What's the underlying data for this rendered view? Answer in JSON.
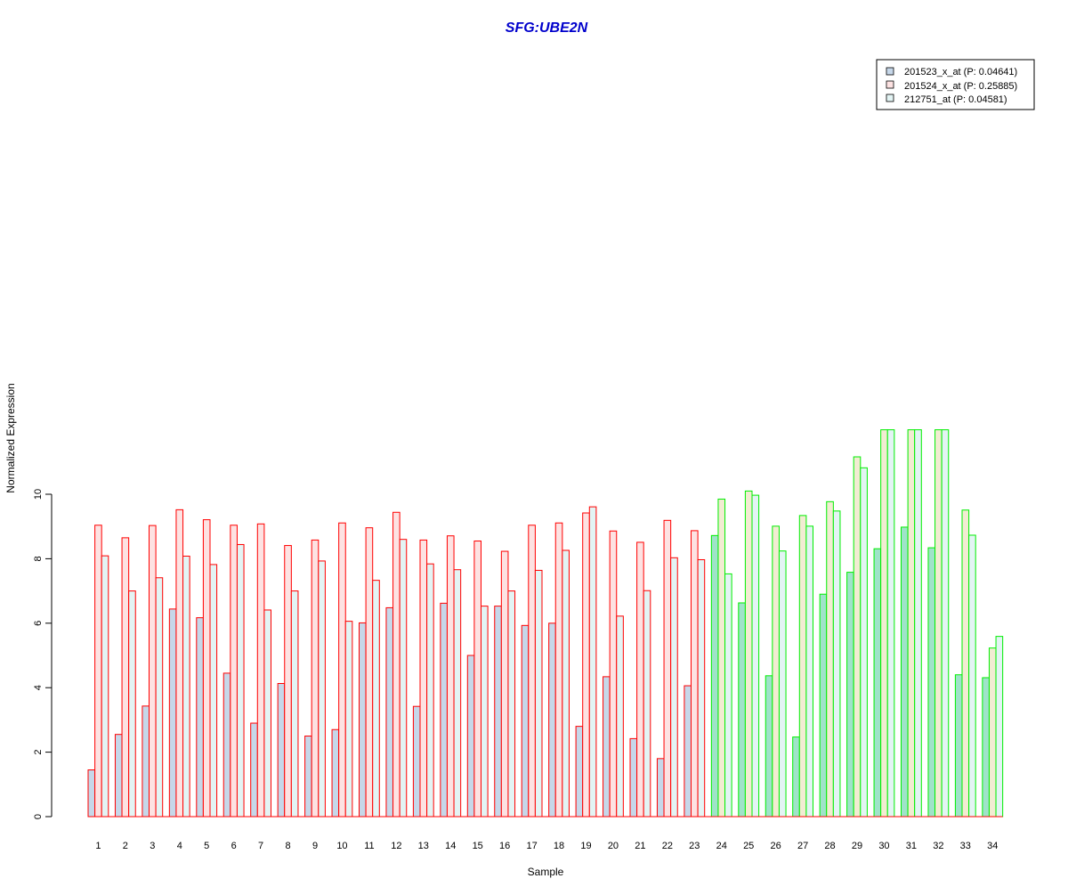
{
  "chart_data": {
    "type": "bar",
    "title": "SFG:UBE2N",
    "xlabel": "Sample",
    "ylabel": "Normalized Expression",
    "ylim": [
      0,
      12.4
    ],
    "yticks": [
      "0",
      "2",
      "4",
      "6",
      "8",
      "10"
    ],
    "categories": [
      "1",
      "2",
      "3",
      "4",
      "5",
      "6",
      "7",
      "8",
      "9",
      "10",
      "11",
      "12",
      "13",
      "14",
      "15",
      "16",
      "17",
      "18",
      "19",
      "20",
      "21",
      "22",
      "23",
      "24",
      "25",
      "26",
      "27",
      "28",
      "29",
      "30",
      "31",
      "32",
      "33",
      "34"
    ],
    "group_split_after": 23,
    "grid": false,
    "legend_position": "top-right",
    "series": [
      {
        "name": "201523_x_at (P: 0.04641)",
        "values": [
          1.45,
          2.55,
          3.43,
          6.44,
          6.17,
          4.45,
          2.9,
          4.13,
          2.5,
          2.7,
          6.01,
          6.48,
          3.42,
          6.62,
          5.0,
          6.53,
          5.93,
          6.0,
          2.8,
          4.34,
          2.42,
          1.8,
          4.06,
          8.72,
          6.63,
          4.37,
          2.47,
          6.9,
          7.58,
          8.31,
          8.98,
          8.34,
          4.4,
          4.31
        ]
      },
      {
        "name": "201524_x_at (P: 0.25885)",
        "values": [
          9.04,
          8.65,
          9.03,
          9.52,
          9.21,
          9.04,
          9.08,
          8.41,
          8.58,
          9.11,
          8.96,
          9.44,
          8.58,
          8.71,
          8.55,
          8.23,
          9.04,
          9.11,
          9.42,
          8.86,
          8.51,
          9.19,
          8.87,
          9.85,
          10.1,
          9.01,
          9.34,
          9.77,
          11.16,
          12.0,
          12.0,
          12.0,
          9.51,
          5.23
        ]
      },
      {
        "name": "212751_at (P: 0.04581)",
        "values": [
          8.09,
          7.0,
          7.41,
          8.08,
          7.82,
          8.44,
          6.41,
          7.0,
          7.93,
          6.06,
          7.33,
          8.6,
          7.84,
          7.66,
          6.53,
          7.0,
          7.64,
          8.26,
          9.61,
          6.22,
          7.01,
          8.03,
          7.97,
          7.53,
          9.97,
          8.24,
          9.01,
          9.48,
          10.82,
          12.0,
          12.0,
          12.0,
          8.73,
          5.59
        ]
      }
    ],
    "colors": {
      "title": "#0000cc",
      "group1_border": "#ff0000",
      "group2_border": "#00ee00",
      "series_fill": [
        "#c6d7e9",
        "#fde2e2",
        "#e3f4f4"
      ],
      "series_fill_group2": [
        "#9fe3c9",
        "#f2ecd2",
        "#e3f4f4"
      ],
      "legend_fill": [
        "#c6d7e9",
        "#fde2e2",
        "#e3f4f4"
      ]
    }
  }
}
